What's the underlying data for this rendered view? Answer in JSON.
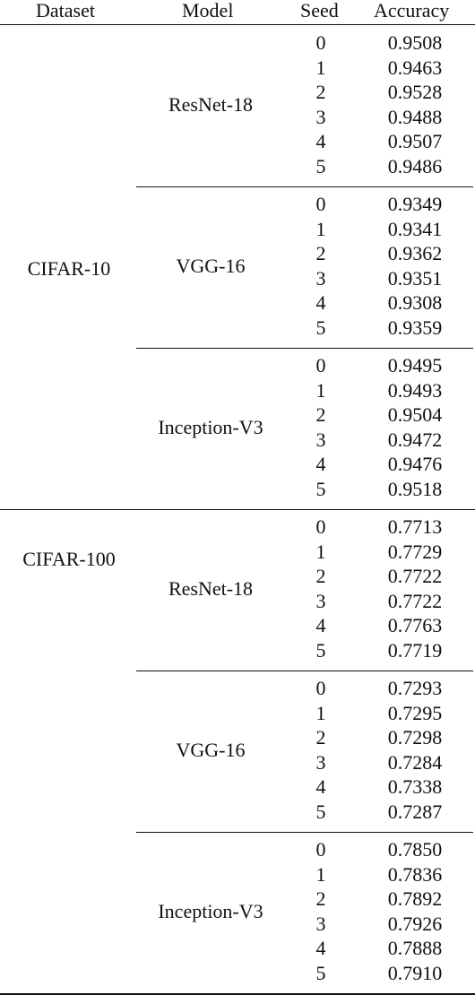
{
  "header": {
    "dataset": "Dataset",
    "model": "Model",
    "seed": "Seed",
    "accuracy": "Accuracy"
  },
  "datasets": [
    {
      "name": "CIFAR-10",
      "models": [
        {
          "name": "ResNet-18",
          "rows": [
            {
              "seed": "0",
              "accuracy": "0.9508"
            },
            {
              "seed": "1",
              "accuracy": "0.9463"
            },
            {
              "seed": "2",
              "accuracy": "0.9528"
            },
            {
              "seed": "3",
              "accuracy": "0.9488"
            },
            {
              "seed": "4",
              "accuracy": "0.9507"
            },
            {
              "seed": "5",
              "accuracy": "0.9486"
            }
          ]
        },
        {
          "name": "VGG-16",
          "rows": [
            {
              "seed": "0",
              "accuracy": "0.9349"
            },
            {
              "seed": "1",
              "accuracy": "0.9341"
            },
            {
              "seed": "2",
              "accuracy": "0.9362"
            },
            {
              "seed": "3",
              "accuracy": "0.9351"
            },
            {
              "seed": "4",
              "accuracy": "0.9308"
            },
            {
              "seed": "5",
              "accuracy": "0.9359"
            }
          ]
        },
        {
          "name": "Inception-V3",
          "rows": [
            {
              "seed": "0",
              "accuracy": "0.9495"
            },
            {
              "seed": "1",
              "accuracy": "0.9493"
            },
            {
              "seed": "2",
              "accuracy": "0.9504"
            },
            {
              "seed": "3",
              "accuracy": "0.9472"
            },
            {
              "seed": "4",
              "accuracy": "0.9476"
            },
            {
              "seed": "5",
              "accuracy": "0.9518"
            }
          ]
        }
      ]
    },
    {
      "name": "CIFAR-100",
      "models": [
        {
          "name": "ResNet-18",
          "rows": [
            {
              "seed": "0",
              "accuracy": "0.7713"
            },
            {
              "seed": "1",
              "accuracy": "0.7729"
            },
            {
              "seed": "2",
              "accuracy": "0.7722"
            },
            {
              "seed": "3",
              "accuracy": "0.7722"
            },
            {
              "seed": "4",
              "accuracy": "0.7763"
            },
            {
              "seed": "5",
              "accuracy": "0.7719"
            }
          ]
        },
        {
          "name": "VGG-16",
          "rows": [
            {
              "seed": "0",
              "accuracy": "0.7293"
            },
            {
              "seed": "1",
              "accuracy": "0.7295"
            },
            {
              "seed": "2",
              "accuracy": "0.7298"
            },
            {
              "seed": "3",
              "accuracy": "0.7284"
            },
            {
              "seed": "4",
              "accuracy": "0.7338"
            },
            {
              "seed": "5",
              "accuracy": "0.7287"
            }
          ]
        },
        {
          "name": "Inception-V3",
          "rows": [
            {
              "seed": "0",
              "accuracy": "0.7850"
            },
            {
              "seed": "1",
              "accuracy": "0.7836"
            },
            {
              "seed": "2",
              "accuracy": "0.7892"
            },
            {
              "seed": "3",
              "accuracy": "0.7926"
            },
            {
              "seed": "4",
              "accuracy": "0.7888"
            },
            {
              "seed": "5",
              "accuracy": "0.7910"
            }
          ]
        }
      ]
    }
  ]
}
